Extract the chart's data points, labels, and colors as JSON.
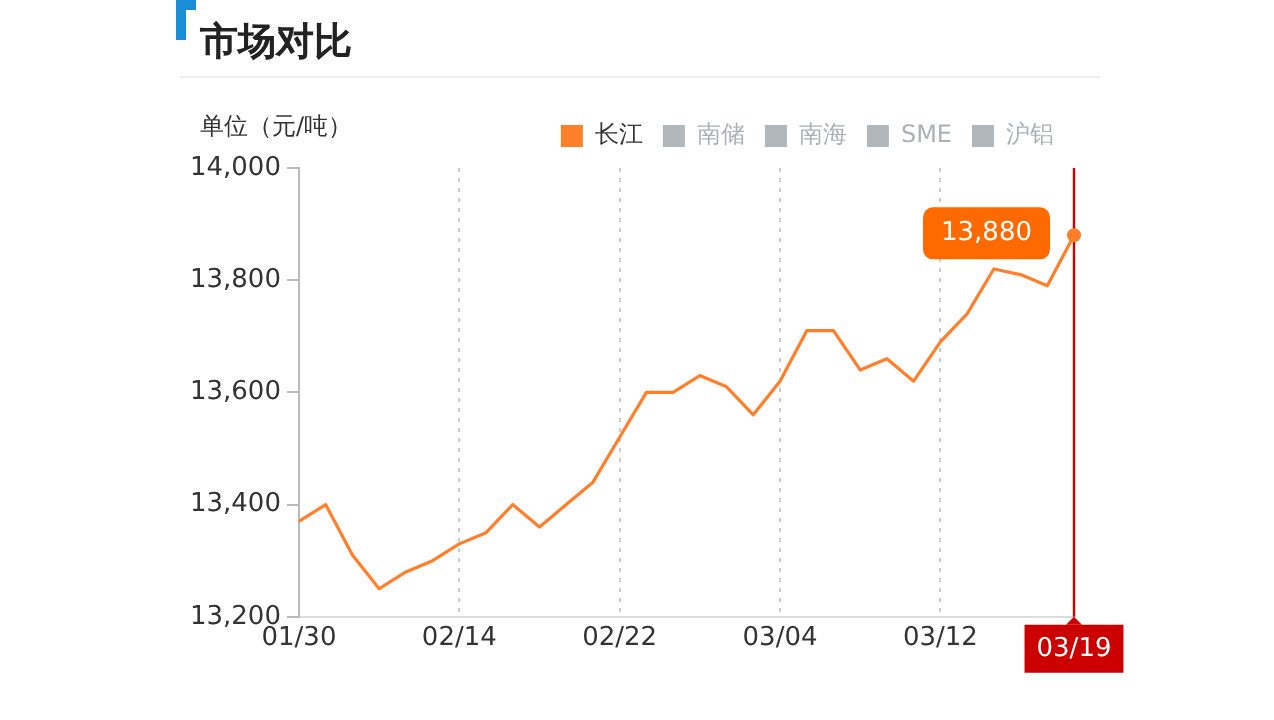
{
  "chart_data": {
    "type": "line",
    "title": "市场对比",
    "ylabel": "单位（元/吨）",
    "categories": [
      "01/30",
      null,
      null,
      null,
      null,
      null,
      "02/14",
      null,
      null,
      null,
      null,
      null,
      "02/22",
      null,
      null,
      null,
      null,
      null,
      "03/04",
      null,
      null,
      null,
      null,
      null,
      "03/12",
      null,
      null,
      null,
      null,
      "03/19"
    ],
    "series": [
      {
        "name": "长江",
        "color": "#ff7f2a",
        "values": [
          13370,
          13400,
          13310,
          13250,
          13280,
          13300,
          13330,
          13350,
          13400,
          13360,
          13400,
          13440,
          13520,
          13600,
          13600,
          13630,
          13610,
          13560,
          13620,
          13710,
          13710,
          13640,
          13660,
          13620,
          13690,
          13740,
          13820,
          13810,
          13790,
          13880
        ],
        "value_labels": [
          null,
          null,
          null,
          null,
          null,
          null,
          null,
          null,
          null,
          null,
          null,
          null,
          null,
          null,
          null,
          null,
          null,
          null,
          null,
          null,
          null,
          null,
          null,
          null,
          null,
          null,
          null,
          null,
          null,
          "13,880"
        ]
      },
      {
        "name": "南储",
        "color": "#b0b8bc",
        "values": [
          null,
          null,
          null,
          null,
          null,
          null,
          null,
          null,
          null,
          null,
          null,
          null,
          null,
          null,
          null,
          null,
          null,
          null,
          null,
          null,
          null,
          null,
          null,
          null,
          null,
          null,
          null,
          null,
          null,
          null
        ]
      },
      {
        "name": "南海",
        "color": "#b0b8bc",
        "values": [
          null,
          null,
          null,
          null,
          null,
          null,
          null,
          null,
          null,
          null,
          null,
          null,
          null,
          null,
          null,
          null,
          null,
          null,
          null,
          null,
          null,
          null,
          null,
          null,
          null,
          null,
          null,
          null,
          null,
          null
        ]
      },
      {
        "name": "SME",
        "color": "#b0b8bc",
        "values": [
          null,
          null,
          null,
          null,
          null,
          null,
          null,
          null,
          null,
          null,
          null,
          null,
          null,
          null,
          null,
          null,
          null,
          null,
          null,
          null,
          null,
          null,
          null,
          null,
          null,
          null,
          null,
          null,
          null,
          null
        ]
      },
      {
        "name": "沪铝",
        "color": "#b0b8bc",
        "values": [
          null,
          null,
          null,
          null,
          null,
          null,
          null,
          null,
          null,
          null,
          null,
          null,
          null,
          null,
          null,
          null,
          null,
          null,
          null,
          null,
          null,
          null,
          null,
          null,
          null,
          null,
          null,
          null,
          null,
          null
        ]
      }
    ],
    "ylim": [
      13200,
      14000
    ],
    "yticks": [
      {
        "value": 13200,
        "label": "13,200"
      },
      {
        "value": 13400,
        "label": "13,400"
      },
      {
        "value": 13600,
        "label": "13,600"
      },
      {
        "value": 13800,
        "label": "13,800"
      },
      {
        "value": 14000,
        "label": "14,000"
      }
    ],
    "ref_lines": [
      {
        "axis": "x",
        "value": "03/19",
        "color": "#cc0000"
      }
    ],
    "grid": "x",
    "legend": "top",
    "marker": "none",
    "line_style": "solid"
  }
}
